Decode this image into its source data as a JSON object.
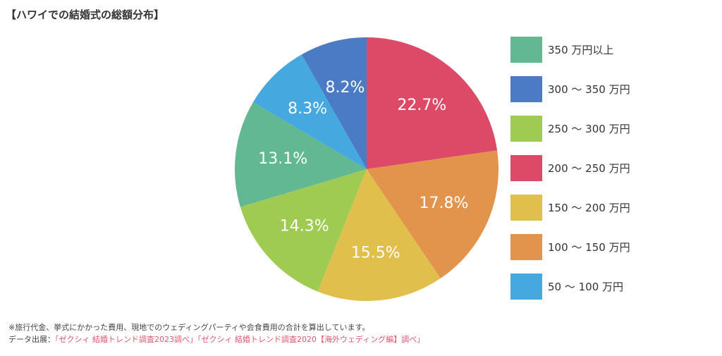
{
  "title": "【ハワイでの結婚式の総額分布】",
  "chart_data": {
    "type": "pie",
    "categories": [
      "350 万円以上",
      "300 ～ 350 万円",
      "250 ～ 300 万円",
      "200 ～ 250 万円",
      "150 ～ 200 万円",
      "100 ～ 150 万円",
      "50 ～ 100 万円"
    ],
    "slices": [
      {
        "label": "200 ～ 250 万円",
        "value": 22.7,
        "display": "22.7%",
        "color": "#dc4a67"
      },
      {
        "label": "100 ～ 150 万円",
        "value": 17.8,
        "display": "17.8%",
        "color": "#e3944c"
      },
      {
        "label": "150 ～ 200 万円",
        "value": 15.5,
        "display": "15.5%",
        "color": "#e1bf4d"
      },
      {
        "label": "250 ～ 300 万円",
        "value": 14.3,
        "display": "14.3%",
        "color": "#9fcb52"
      },
      {
        "label": "350 万円以上",
        "value": 13.1,
        "display": "13.1%",
        "color": "#62b891"
      },
      {
        "label": "50 ～ 100 万円",
        "value": 8.3,
        "display": "8.3%",
        "color": "#45a8df"
      },
      {
        "label": "300 ～ 350 万円",
        "value": 8.2,
        "display": "8.2%",
        "color": "#4a7bc4"
      }
    ],
    "legend": [
      {
        "label": "350 万円以上",
        "color": "#62b891"
      },
      {
        "label": "300 ～ 350 万円",
        "color": "#4a7bc4"
      },
      {
        "label": "250 ～ 300 万円",
        "color": "#9fcb52"
      },
      {
        "label": "200 ～ 250 万円",
        "color": "#dc4a67"
      },
      {
        "label": "150 ～ 200 万円",
        "color": "#e1bf4d"
      },
      {
        "label": "100 ～ 150 万円",
        "color": "#e3944c"
      },
      {
        "label": "50 ～ 100 万円",
        "color": "#45a8df"
      }
    ],
    "legend_position": "right"
  },
  "footnote": {
    "note": "※旅行代金、挙式にかかった費用、現地でのウェディングパーティや会食費用の合計を算出しています。",
    "source_prefix": "データ出展：",
    "source_links": "「ゼクシィ 結婚トレンド調査2023調べ」「ゼクシィ 結婚トレンド調査2020【海外ウェディング編】調べ」"
  }
}
